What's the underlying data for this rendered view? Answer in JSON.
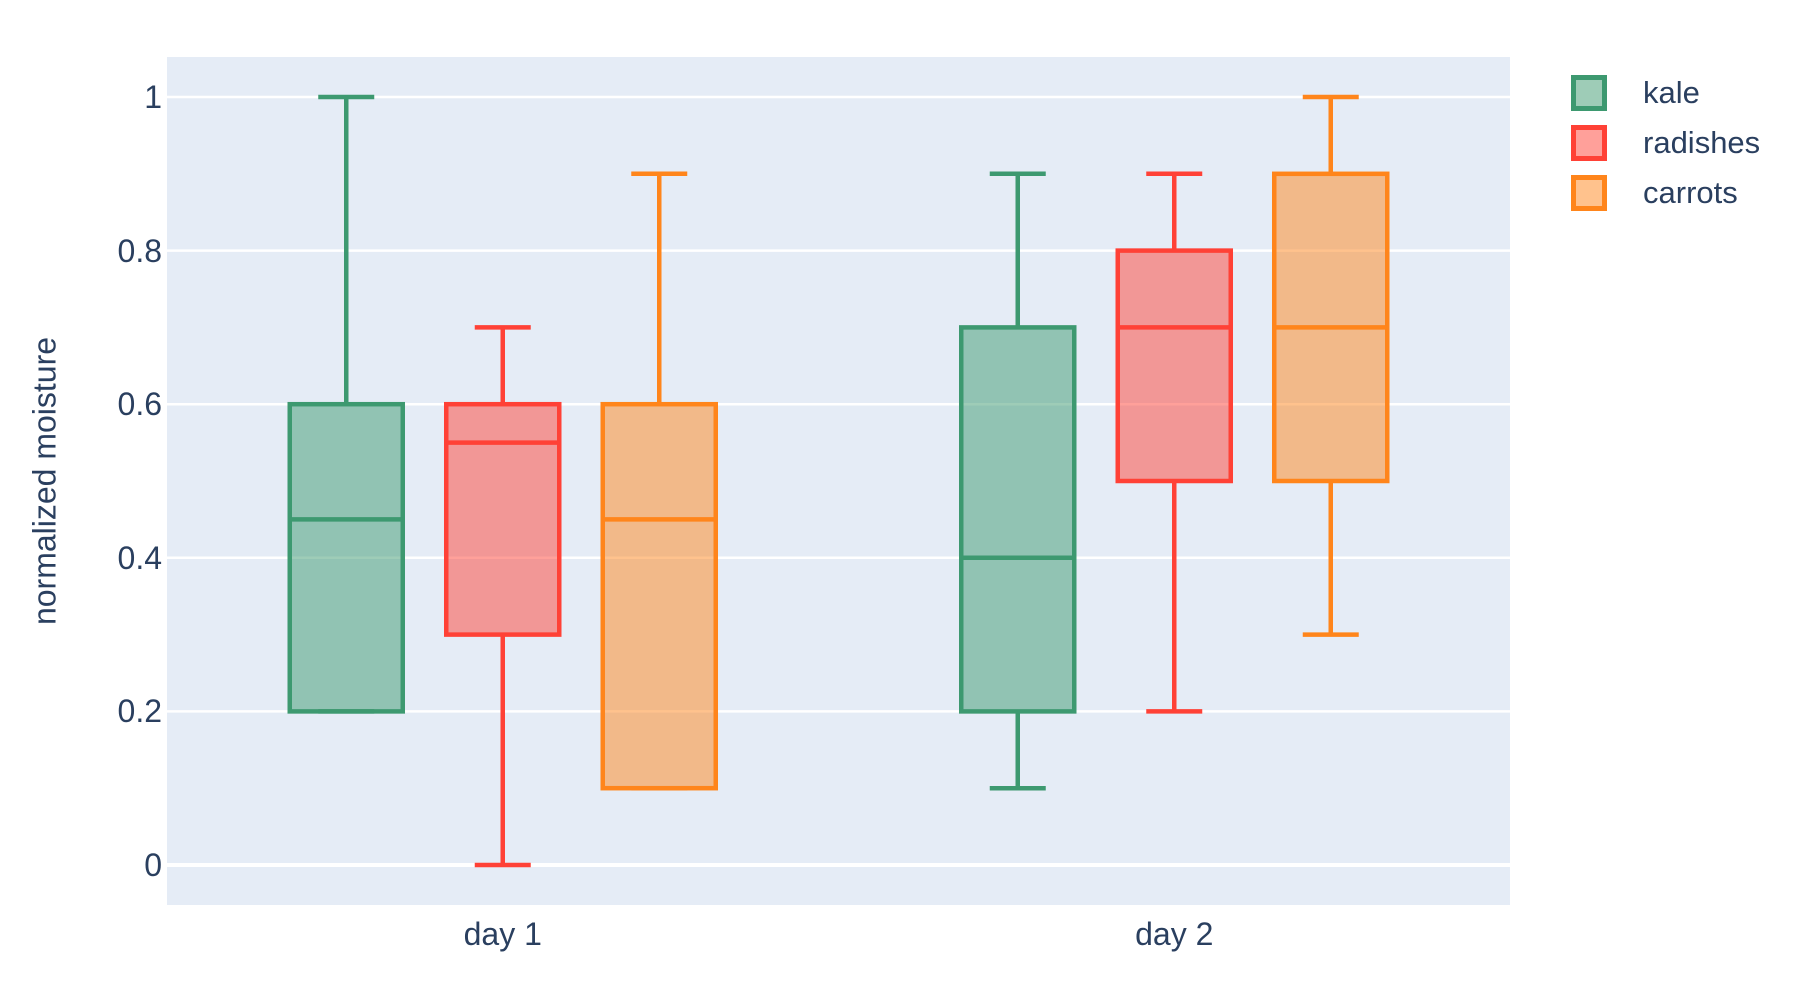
{
  "figure": {
    "background": "#ffffff",
    "text_color": "#2a3f5f"
  },
  "chart_data": {
    "type": "box",
    "mode": "grouped",
    "title": "",
    "xlabel": "",
    "ylabel": "normalized moisture",
    "categories": [
      "day 1",
      "day 2"
    ],
    "y_ticks": [
      0,
      0.2,
      0.4,
      0.6,
      0.8,
      1
    ],
    "y_tick_labels": [
      "0",
      "0.2",
      "0.4",
      "0.6",
      "0.8",
      "1"
    ],
    "ylim": [
      -0.052,
      1.052
    ],
    "grid": true,
    "plot_background": "#E5ECF6",
    "gridline_color": "#ffffff",
    "legend_position": "outside-top-right",
    "series": [
      {
        "name": "kale",
        "color": "#3D9970",
        "boxes": [
          {
            "category": "day 1",
            "low": 0.2,
            "q1": 0.2,
            "median": 0.45,
            "q3": 0.6,
            "high": 1.0
          },
          {
            "category": "day 2",
            "low": 0.1,
            "q1": 0.2,
            "median": 0.4,
            "q3": 0.7,
            "high": 0.9
          }
        ]
      },
      {
        "name": "radishes",
        "color": "#FF4136",
        "boxes": [
          {
            "category": "day 1",
            "low": 0.0,
            "q1": 0.3,
            "median": 0.55,
            "q3": 0.6,
            "high": 0.7
          },
          {
            "category": "day 2",
            "low": 0.2,
            "q1": 0.5,
            "median": 0.7,
            "q3": 0.8,
            "high": 0.9
          }
        ]
      },
      {
        "name": "carrots",
        "color": "#FF851B",
        "boxes": [
          {
            "category": "day 1",
            "low": 0.1,
            "q1": 0.1,
            "median": 0.45,
            "q3": 0.6,
            "high": 0.9
          },
          {
            "category": "day 2",
            "low": 0.3,
            "q1": 0.5,
            "median": 0.7,
            "q3": 0.9,
            "high": 1.0
          }
        ]
      }
    ]
  }
}
